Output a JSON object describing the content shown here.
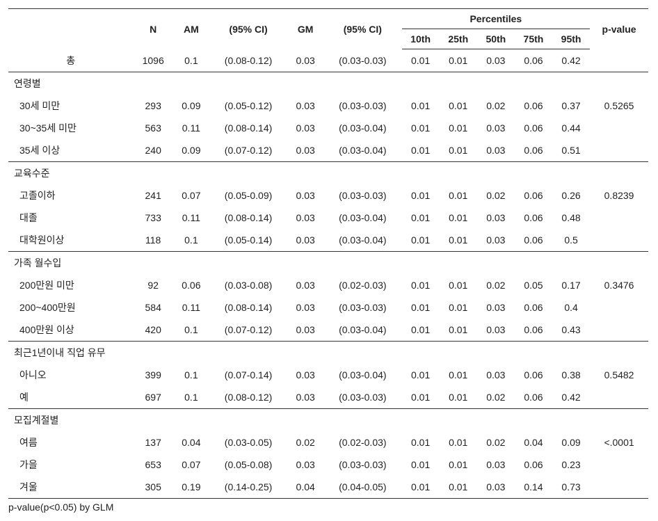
{
  "columns": {
    "blank": "",
    "n": "N",
    "am": "AM",
    "ci1": "(95% CI)",
    "gm": "GM",
    "ci2": "(95% CI)",
    "percentiles_header": "Percentiles",
    "p10": "10th",
    "p25": "25th",
    "p50": "50th",
    "p75": "75th",
    "p95": "95th",
    "pvalue": "p-value"
  },
  "total_label": "총",
  "total": [
    "1096",
    "0.1",
    "(0.08-0.12)",
    "0.03",
    "(0.03-0.03)",
    "0.01",
    "0.01",
    "0.03",
    "0.06",
    "0.42",
    ""
  ],
  "sections": [
    {
      "title": "연령별",
      "rows": [
        {
          "label": "30세 미만",
          "cells": [
            "293",
            "0.09",
            "(0.05-0.12)",
            "0.03",
            "(0.03-0.03)",
            "0.01",
            "0.01",
            "0.02",
            "0.06",
            "0.37",
            "0.5265"
          ]
        },
        {
          "label": "30~35세 미만",
          "cells": [
            "563",
            "0.11",
            "(0.08-0.14)",
            "0.03",
            "(0.03-0.04)",
            "0.01",
            "0.01",
            "0.03",
            "0.06",
            "0.44",
            ""
          ]
        },
        {
          "label": "35세 이상",
          "cells": [
            "240",
            "0.09",
            "(0.07-0.12)",
            "0.03",
            "(0.03-0.04)",
            "0.01",
            "0.01",
            "0.03",
            "0.06",
            "0.51",
            ""
          ]
        }
      ]
    },
    {
      "title": "교육수준",
      "rows": [
        {
          "label": "고졸이하",
          "cells": [
            "241",
            "0.07",
            "(0.05-0.09)",
            "0.03",
            "(0.03-0.03)",
            "0.01",
            "0.01",
            "0.02",
            "0.06",
            "0.26",
            "0.8239"
          ]
        },
        {
          "label": "대졸",
          "cells": [
            "733",
            "0.11",
            "(0.08-0.14)",
            "0.03",
            "(0.03-0.04)",
            "0.01",
            "0.01",
            "0.03",
            "0.06",
            "0.48",
            ""
          ]
        },
        {
          "label": "대학원이상",
          "cells": [
            "118",
            "0.1",
            "(0.05-0.14)",
            "0.03",
            "(0.03-0.04)",
            "0.01",
            "0.01",
            "0.03",
            "0.06",
            "0.5",
            ""
          ]
        }
      ]
    },
    {
      "title": "가족 월수입",
      "rows": [
        {
          "label": "200만원 미만",
          "cells": [
            "92",
            "0.06",
            "(0.03-0.08)",
            "0.03",
            "(0.02-0.03)",
            "0.01",
            "0.01",
            "0.02",
            "0.05",
            "0.17",
            "0.3476"
          ]
        },
        {
          "label": "200~400만원",
          "cells": [
            "584",
            "0.11",
            "(0.08-0.14)",
            "0.03",
            "(0.03-0.03)",
            "0.01",
            "0.01",
            "0.03",
            "0.06",
            "0.4",
            ""
          ]
        },
        {
          "label": "400만원 이상",
          "cells": [
            "420",
            "0.1",
            "(0.07-0.12)",
            "0.03",
            "(0.03-0.04)",
            "0.01",
            "0.01",
            "0.03",
            "0.06",
            "0.43",
            ""
          ]
        }
      ]
    },
    {
      "title": "최근1년이내 직업 유무",
      "rows": [
        {
          "label": "아니오",
          "cells": [
            "399",
            "0.1",
            "(0.07-0.14)",
            "0.03",
            "(0.03-0.04)",
            "0.01",
            "0.01",
            "0.03",
            "0.06",
            "0.38",
            "0.5482"
          ]
        },
        {
          "label": "예",
          "cells": [
            "697",
            "0.1",
            "(0.08-0.12)",
            "0.03",
            "(0.03-0.03)",
            "0.01",
            "0.01",
            "0.02",
            "0.06",
            "0.42",
            ""
          ]
        }
      ]
    },
    {
      "title": "모집계절별",
      "rows": [
        {
          "label": "여름",
          "cells": [
            "137",
            "0.04",
            "(0.03-0.05)",
            "0.02",
            "(0.02-0.03)",
            "0.01",
            "0.01",
            "0.02",
            "0.04",
            "0.09",
            "<.0001"
          ]
        },
        {
          "label": "가을",
          "cells": [
            "653",
            "0.07",
            "(0.05-0.08)",
            "0.03",
            "(0.03-0.03)",
            "0.01",
            "0.01",
            "0.03",
            "0.06",
            "0.23",
            ""
          ]
        },
        {
          "label": "겨울",
          "cells": [
            "305",
            "0.19",
            "(0.14-0.25)",
            "0.04",
            "(0.04-0.05)",
            "0.01",
            "0.01",
            "0.03",
            "0.14",
            "0.73",
            ""
          ]
        }
      ]
    }
  ],
  "footnote": "p-value(p<0.05) by GLM"
}
